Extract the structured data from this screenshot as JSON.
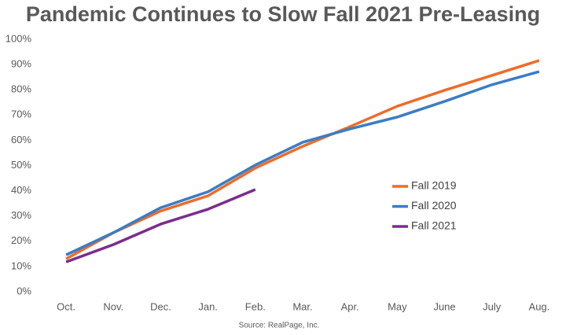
{
  "chart_data": {
    "type": "line",
    "title": "Pandemic Continues to Slow Fall 2021 Pre-Leasing",
    "source": "Source: RealPage, Inc.",
    "categories": [
      "Oct.",
      "Nov.",
      "Dec.",
      "Jan.",
      "Feb.",
      "Mar.",
      "Apr.",
      "May",
      "June",
      "July",
      "Aug."
    ],
    "series": [
      {
        "name": "Fall 2019",
        "color": "#ed6c2a",
        "values": [
          13,
          23.4,
          32,
          38,
          49,
          57.6,
          65.4,
          73.5,
          79.8,
          85.7,
          91.6
        ]
      },
      {
        "name": "Fall 2020",
        "color": "#3b7dc4",
        "values": [
          14.6,
          23.4,
          33.3,
          39.6,
          50.2,
          59.2,
          64.5,
          69.2,
          75.4,
          82,
          87.2
        ]
      },
      {
        "name": "Fall 2021",
        "color": "#7b2d8e",
        "values": [
          11.8,
          18.7,
          26.8,
          32.7,
          40.5,
          null,
          null,
          null,
          null,
          null,
          null
        ]
      }
    ],
    "ylim": [
      0,
      100
    ],
    "yticks": [
      {
        "value": 0,
        "label": "0%"
      },
      {
        "value": 10,
        "label": "10%"
      },
      {
        "value": 20,
        "label": "20%"
      },
      {
        "value": 30,
        "label": "30%"
      },
      {
        "value": 40,
        "label": "40%"
      },
      {
        "value": 50,
        "label": "50%"
      },
      {
        "value": 60,
        "label": "60%"
      },
      {
        "value": 70,
        "label": "70%"
      },
      {
        "value": 80,
        "label": "80%"
      },
      {
        "value": 90,
        "label": "90%"
      },
      {
        "value": 100,
        "label": "100%"
      }
    ],
    "grid": false,
    "legend": "right"
  }
}
